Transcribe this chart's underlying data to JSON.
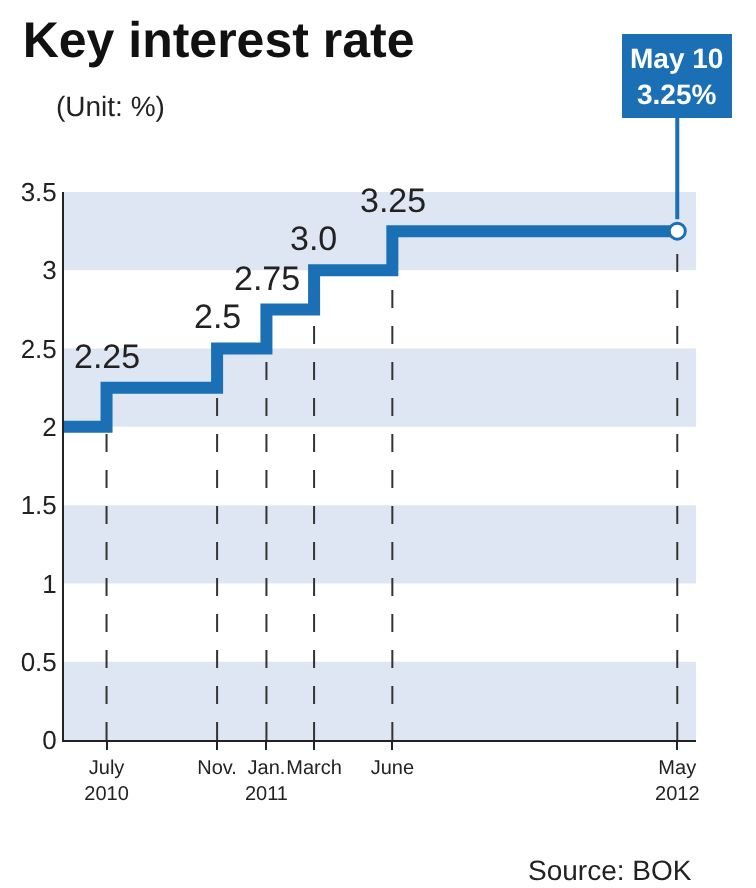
{
  "chart_data": {
    "type": "step",
    "title": "Key interest rate",
    "subtitle": "(Unit: %)",
    "x": [
      "2010-05-20",
      "2010-07-09",
      "2010-11-16",
      "2011-01-13",
      "2011-03-10",
      "2011-06-10",
      "2012-05-10"
    ],
    "series": [
      {
        "color": "#1a6fb5",
        "values": [
          2.0,
          2.25,
          2.5,
          2.75,
          3.0,
          3.25,
          3.25
        ],
        "value_labels": [
          null,
          "2.25",
          "2.5",
          "2.75",
          "3.0",
          "3.25",
          null
        ]
      },
      {
        "type": "scatter",
        "color": "#1a6fb5",
        "x": [
          "2012-05-10"
        ],
        "values": [
          3.25
        ],
        "marker": "circle"
      }
    ],
    "xlim": [
      "2010-05-20",
      "2012-06-01"
    ],
    "xticks": [
      {
        "value": "2010-07-09",
        "label": "July\n2010"
      },
      {
        "value": "2010-11-16",
        "label": "Nov."
      },
      {
        "value": "2011-01-13",
        "label": "Jan.\n2011"
      },
      {
        "value": "2011-03-10",
        "label": "March"
      },
      {
        "value": "2011-06-10",
        "label": "June"
      },
      {
        "value": "2012-05-10",
        "label": "May\n2012"
      }
    ],
    "ylim": [
      0,
      3.5
    ],
    "yticks": [
      0,
      0.5,
      1.0,
      1.5,
      2.0,
      2.5,
      3.0,
      3.5
    ],
    "bands": [
      {
        "axis": "y",
        "from": 0,
        "to": 0.5,
        "color": "#dfe6f3"
      },
      {
        "axis": "y",
        "from": 1.0,
        "to": 1.5,
        "color": "#dfe6f3"
      },
      {
        "axis": "y",
        "from": 2.0,
        "to": 2.5,
        "color": "#dfe6f3"
      },
      {
        "axis": "y",
        "from": 3.0,
        "to": 3.5,
        "color": "#dfe6f3"
      }
    ],
    "ref_lines": [
      {
        "axis": "x",
        "value": "2010-07-09",
        "line_style": "dashed",
        "color": "#333333"
      },
      {
        "axis": "x",
        "value": "2010-11-16",
        "line_style": "dashed",
        "color": "#333333"
      },
      {
        "axis": "x",
        "value": "2011-01-13",
        "line_style": "dashed",
        "color": "#333333"
      },
      {
        "axis": "x",
        "value": "2011-03-10",
        "line_style": "dashed",
        "color": "#333333"
      },
      {
        "axis": "x",
        "value": "2011-06-10",
        "line_style": "dashed",
        "color": "#333333"
      },
      {
        "axis": "x",
        "value": "2012-05-10",
        "line_style": "dashed",
        "color": "#333333"
      }
    ],
    "annotations": [
      {
        "text": "May 10\n3.25%",
        "x": "2012-05-10",
        "y": 3.25
      },
      "Source: BOK"
    ],
    "grid": false,
    "marker": "none",
    "line_style": "solid"
  }
}
